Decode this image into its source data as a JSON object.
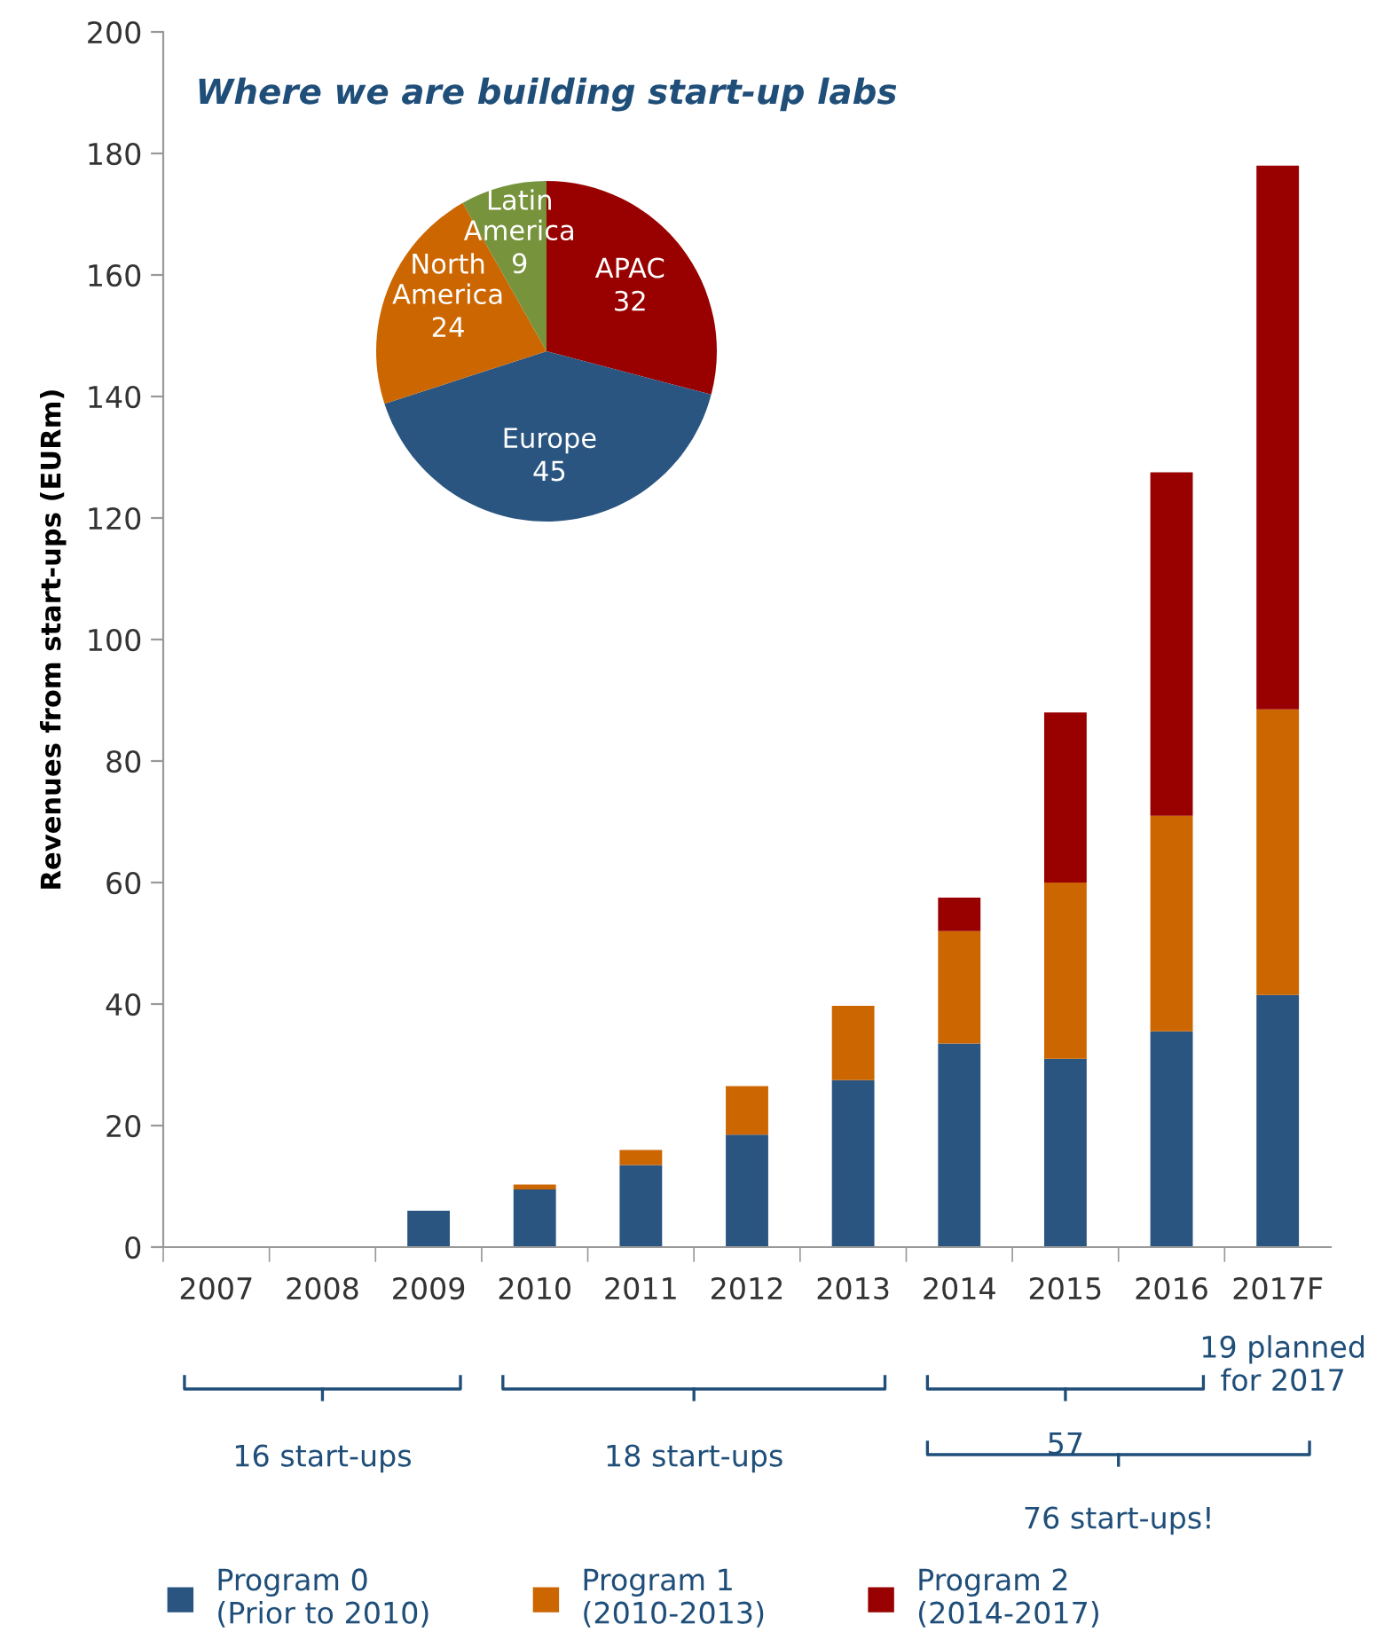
{
  "chart_data": [
    {
      "type": "bar",
      "stacked": true,
      "ylabel": "Revenues from start-ups (EURm)",
      "categories": [
        "2007",
        "2008",
        "2009",
        "2010",
        "2011",
        "2012",
        "2013",
        "2014",
        "2015",
        "2016",
        "2017F"
      ],
      "series": [
        {
          "name": "Program 0\n(Prior to 2010)",
          "color": "#2a5580",
          "values": [
            null,
            null,
            6,
            9.5,
            13.5,
            18.5,
            27.5,
            33.5,
            31,
            35.5,
            41.5
          ]
        },
        {
          "name": "Program 1\n(2010-2013)",
          "color": "#cc6600",
          "values": [
            null,
            null,
            null,
            0.8,
            2.5,
            8,
            12.2,
            18.5,
            29,
            35.5,
            47
          ]
        },
        {
          "name": "Program 2\n(2014-2017)",
          "color": "#990000",
          "values": [
            null,
            null,
            null,
            null,
            null,
            null,
            null,
            5.5,
            28,
            56.5,
            89.5
          ]
        }
      ],
      "ylim": [
        0,
        200
      ],
      "yticks": [
        0,
        20,
        40,
        60,
        80,
        100,
        120,
        140,
        160,
        180,
        200
      ],
      "grid": false,
      "legend": "bottom",
      "annotations": [
        "16 start-ups",
        "18 start-ups",
        "57",
        "76 start-ups!",
        "19 planned\nfor 2017"
      ]
    },
    {
      "type": "pie",
      "title": "Where we are building start-up labs",
      "categories": [
        "APAC",
        "Europe",
        "North\nAmerica",
        "Latin\nAmerica"
      ],
      "values": [
        32,
        45,
        24,
        9
      ],
      "colors": [
        "#990000",
        "#2a5580",
        "#cc6600",
        "#77933c"
      ],
      "data_labels": true
    }
  ]
}
